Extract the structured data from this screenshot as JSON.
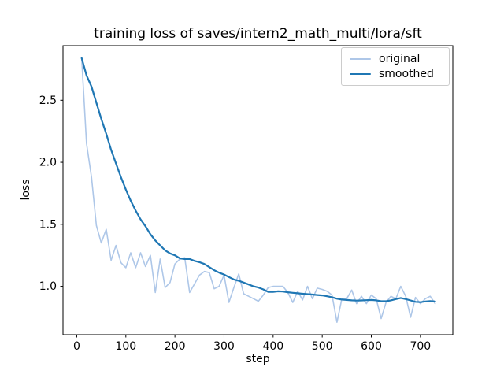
{
  "figure": {
    "title": "training loss of saves/intern2_math_multi/lora/sft",
    "xlabel": "step",
    "ylabel": "loss",
    "background_color": "#ffffff",
    "text_color": "#000000"
  },
  "legend": {
    "position": "upper right",
    "border_color": "#cccccc",
    "items": [
      {
        "label": "original",
        "color": "#aec7e8",
        "linewidth": 2
      },
      {
        "label": "smoothed",
        "color": "#1f77b4",
        "linewidth": 2
      }
    ]
  },
  "chart_data": {
    "type": "line",
    "title": "training loss of saves/intern2_math_multi/lora/sft",
    "xlabel": "step",
    "ylabel": "loss",
    "grid": false,
    "legend_position": "upper right",
    "xlim": [
      -28,
      766
    ],
    "ylim": [
      0.61,
      2.94
    ],
    "xticks": [
      0,
      100,
      200,
      300,
      400,
      500,
      600,
      700
    ],
    "yticks": [
      1.0,
      1.5,
      2.0,
      2.5
    ],
    "x": [
      10,
      20,
      30,
      40,
      50,
      60,
      70,
      80,
      90,
      100,
      110,
      120,
      130,
      140,
      150,
      160,
      170,
      180,
      190,
      200,
      210,
      220,
      230,
      240,
      250,
      260,
      270,
      280,
      290,
      300,
      310,
      320,
      330,
      340,
      350,
      360,
      370,
      380,
      390,
      400,
      410,
      420,
      430,
      440,
      450,
      460,
      470,
      480,
      490,
      500,
      510,
      520,
      530,
      540,
      550,
      560,
      570,
      580,
      590,
      600,
      610,
      620,
      630,
      640,
      650,
      660,
      670,
      680,
      690,
      700,
      710,
      720,
      730
    ],
    "series": [
      {
        "name": "original",
        "color": "#aec7e8",
        "linewidth": 1.6,
        "values": [
          2.84,
          2.15,
          1.88,
          1.49,
          1.35,
          1.46,
          1.21,
          1.33,
          1.19,
          1.15,
          1.27,
          1.15,
          1.27,
          1.16,
          1.25,
          0.95,
          1.22,
          0.99,
          1.03,
          1.18,
          1.22,
          1.23,
          0.95,
          1.02,
          1.09,
          1.12,
          1.11,
          0.98,
          1.0,
          1.09,
          0.87,
          0.99,
          1.1,
          0.94,
          0.92,
          0.9,
          0.88,
          0.93,
          0.99,
          1.0,
          1.0,
          1.0,
          0.95,
          0.87,
          0.96,
          0.89,
          1.0,
          0.9,
          0.985,
          0.975,
          0.96,
          0.93,
          0.71,
          0.9,
          0.9,
          0.97,
          0.86,
          0.92,
          0.86,
          0.93,
          0.9,
          0.74,
          0.87,
          0.92,
          0.9,
          1.0,
          0.92,
          0.75,
          0.91,
          0.86,
          0.9,
          0.92,
          0.86
        ]
      },
      {
        "name": "smoothed",
        "color": "#1f77b4",
        "linewidth": 2.2,
        "values": [
          2.84,
          2.7,
          2.61,
          2.48,
          2.35,
          2.23,
          2.1,
          1.99,
          1.88,
          1.78,
          1.69,
          1.61,
          1.54,
          1.485,
          1.42,
          1.37,
          1.33,
          1.29,
          1.265,
          1.25,
          1.225,
          1.22,
          1.22,
          1.205,
          1.195,
          1.18,
          1.155,
          1.13,
          1.11,
          1.095,
          1.075,
          1.055,
          1.045,
          1.03,
          1.015,
          1.0,
          0.99,
          0.975,
          0.955,
          0.955,
          0.96,
          0.958,
          0.952,
          0.948,
          0.944,
          0.94,
          0.937,
          0.934,
          0.93,
          0.927,
          0.92,
          0.912,
          0.9,
          0.893,
          0.89,
          0.887,
          0.885,
          0.886,
          0.888,
          0.89,
          0.887,
          0.88,
          0.88,
          0.887,
          0.897,
          0.906,
          0.897,
          0.886,
          0.875,
          0.872,
          0.878,
          0.881,
          0.878
        ]
      }
    ]
  }
}
